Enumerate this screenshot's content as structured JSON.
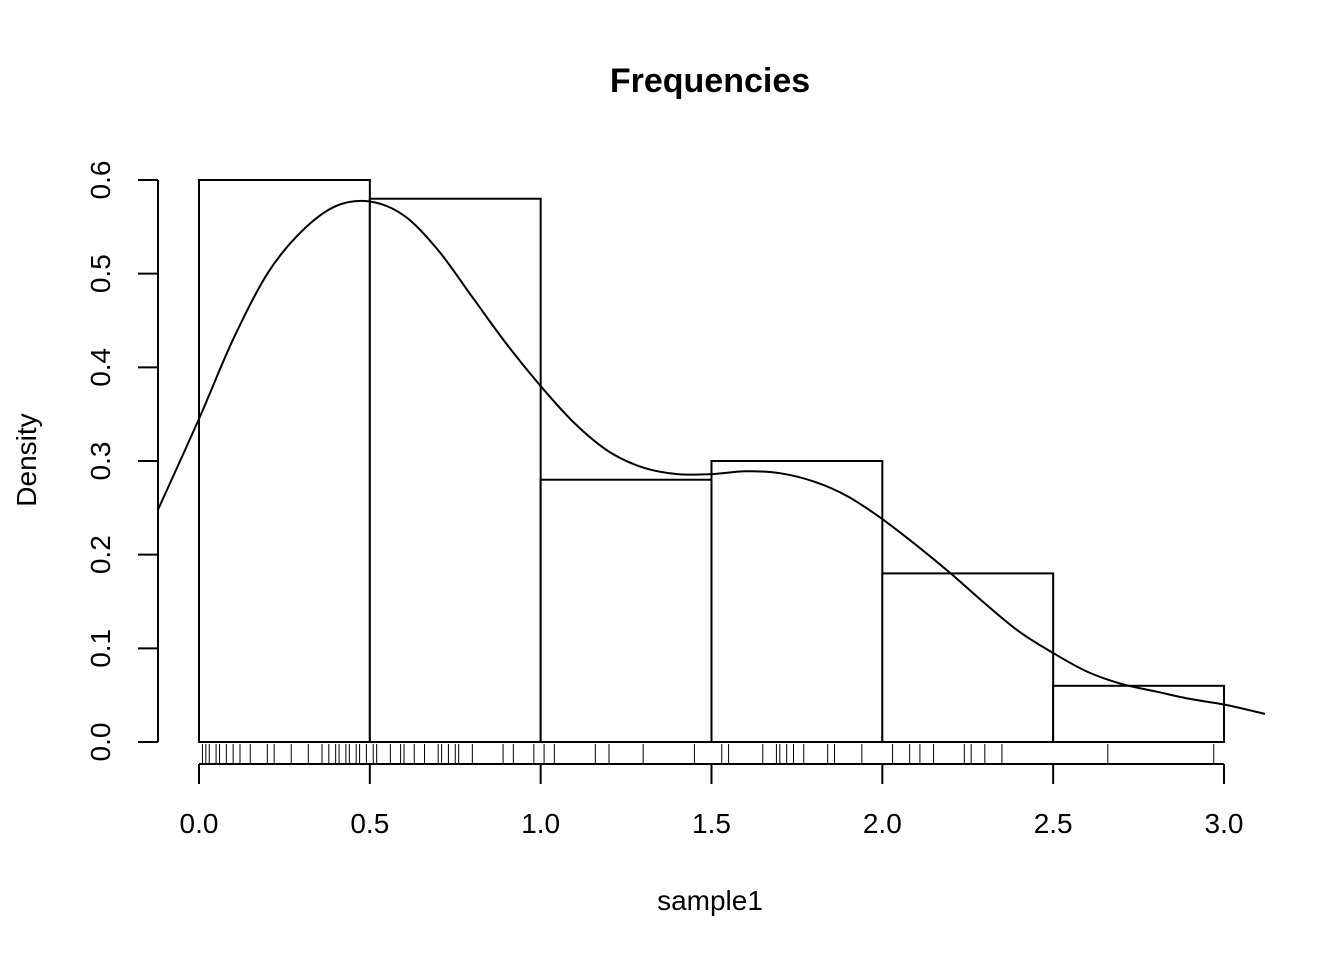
{
  "chart_data": {
    "type": "histogram",
    "title": "Frequencies",
    "xlabel": "sample1",
    "ylabel": "Density",
    "bins": [
      {
        "start": 0.0,
        "end": 0.5,
        "density": 0.6
      },
      {
        "start": 0.5,
        "end": 1.0,
        "density": 0.58
      },
      {
        "start": 1.0,
        "end": 1.5,
        "density": 0.28
      },
      {
        "start": 1.5,
        "end": 2.0,
        "density": 0.3
      },
      {
        "start": 2.0,
        "end": 2.5,
        "density": 0.18
      },
      {
        "start": 2.5,
        "end": 3.0,
        "density": 0.06
      }
    ],
    "density_curve": {
      "x": [
        -0.12,
        0.0,
        0.1,
        0.2,
        0.3,
        0.4,
        0.5,
        0.6,
        0.7,
        0.8,
        0.9,
        1.0,
        1.1,
        1.2,
        1.3,
        1.4,
        1.5,
        1.6,
        1.7,
        1.8,
        1.9,
        2.0,
        2.1,
        2.2,
        2.3,
        2.4,
        2.5,
        2.6,
        2.7,
        2.8,
        2.9,
        3.0,
        3.12
      ],
      "y": [
        0.248,
        0.345,
        0.43,
        0.5,
        0.545,
        0.572,
        0.577,
        0.562,
        0.525,
        0.475,
        0.425,
        0.38,
        0.34,
        0.31,
        0.293,
        0.286,
        0.286,
        0.289,
        0.287,
        0.278,
        0.262,
        0.238,
        0.21,
        0.18,
        0.148,
        0.118,
        0.095,
        0.075,
        0.062,
        0.054,
        0.046,
        0.04,
        0.03
      ]
    },
    "rug": [
      0.01,
      0.02,
      0.03,
      0.05,
      0.06,
      0.08,
      0.1,
      0.12,
      0.15,
      0.2,
      0.22,
      0.27,
      0.32,
      0.36,
      0.38,
      0.4,
      0.41,
      0.43,
      0.44,
      0.46,
      0.47,
      0.49,
      0.51,
      0.52,
      0.56,
      0.59,
      0.6,
      0.63,
      0.66,
      0.7,
      0.71,
      0.73,
      0.75,
      0.76,
      0.8,
      0.89,
      0.92,
      0.98,
      1.01,
      1.04,
      1.16,
      1.2,
      1.3,
      1.45,
      1.53,
      1.55,
      1.65,
      1.69,
      1.7,
      1.72,
      1.74,
      1.77,
      1.84,
      1.86,
      1.94,
      2.03,
      2.08,
      2.11,
      2.15,
      2.24,
      2.26,
      2.3,
      2.35,
      2.66,
      2.97
    ],
    "xlim": [
      -0.12,
      3.12
    ],
    "ylim": [
      0,
      0.6
    ],
    "x_ticks": [
      0.0,
      0.5,
      1.0,
      1.5,
      2.0,
      2.5,
      3.0
    ],
    "x_tick_labels": [
      "0.0",
      "0.5",
      "1.0",
      "1.5",
      "2.0",
      "2.5",
      "3.0"
    ],
    "y_ticks": [
      0.0,
      0.1,
      0.2,
      0.3,
      0.4,
      0.5,
      0.6
    ],
    "y_tick_labels": [
      "0.0",
      "0.1",
      "0.2",
      "0.3",
      "0.4",
      "0.5",
      "0.6"
    ],
    "grid": false,
    "colors": {
      "stroke": "#000000",
      "fill": "#ffffff",
      "background": "#ffffff"
    }
  }
}
